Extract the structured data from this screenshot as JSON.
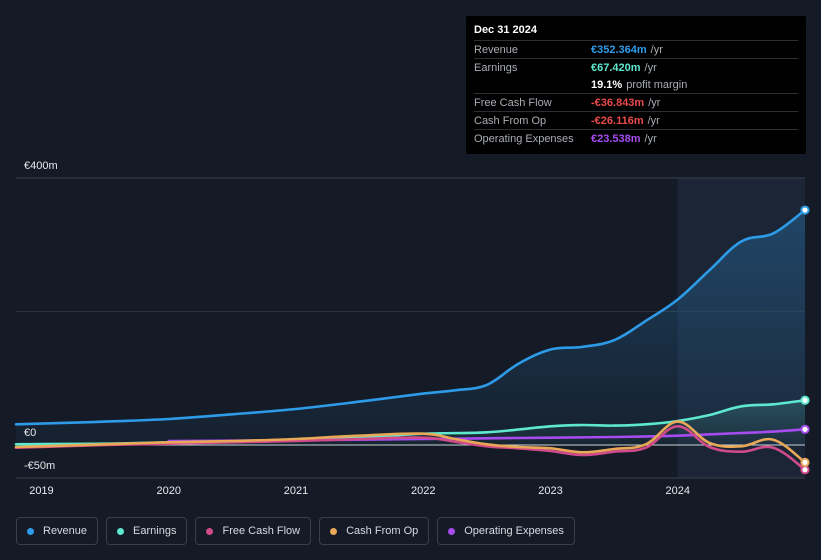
{
  "tooltip": {
    "date": "Dec 31 2024",
    "rows": [
      {
        "name": "Revenue",
        "value": "€352.364m",
        "unit": "/yr",
        "color": "#2d9be8"
      },
      {
        "name": "Earnings",
        "value": "€67.420m",
        "unit": "/yr",
        "color": "#5ee8cf"
      },
      {
        "name": "",
        "value": "19.1%",
        "unit": "profit margin",
        "color": "#ffffff"
      },
      {
        "name": "Free Cash Flow",
        "value": "-€36.843m",
        "unit": "/yr",
        "color": "#e84a4a"
      },
      {
        "name": "Cash From Op",
        "value": "-€26.116m",
        "unit": "/yr",
        "color": "#e84a4a"
      },
      {
        "name": "Operating Expenses",
        "value": "€23.538m",
        "unit": "/yr",
        "color": "#a64cf0"
      }
    ]
  },
  "axis": {
    "y_top_label": "€400m",
    "y_zero_label": "€0",
    "y_bottom_label": "-€50m"
  },
  "legend": [
    {
      "label": "Revenue",
      "color": "#2d9be8"
    },
    {
      "label": "Earnings",
      "color": "#5ee8cf"
    },
    {
      "label": "Free Cash Flow",
      "color": "#d14a8a"
    },
    {
      "label": "Cash From Op",
      "color": "#e8a857"
    },
    {
      "label": "Operating Expenses",
      "color": "#a64cf0"
    }
  ],
  "chart_data": {
    "type": "line",
    "x_ticks": [
      "2019",
      "2020",
      "2021",
      "2022",
      "2023",
      "2024"
    ],
    "ylim": [
      -50,
      400
    ],
    "x_range": [
      2018.8,
      2025.0
    ],
    "highlight_start": 2024.0,
    "series": [
      {
        "name": "Revenue",
        "color": "#2d9be8",
        "filled": true,
        "points": [
          [
            2018.8,
            31
          ],
          [
            2019.0,
            32
          ],
          [
            2019.5,
            35
          ],
          [
            2020.0,
            39
          ],
          [
            2020.5,
            46
          ],
          [
            2021.0,
            54
          ],
          [
            2021.5,
            65
          ],
          [
            2022.0,
            77
          ],
          [
            2022.25,
            82
          ],
          [
            2022.5,
            90
          ],
          [
            2022.75,
            122
          ],
          [
            2023.0,
            143
          ],
          [
            2023.25,
            147
          ],
          [
            2023.5,
            157
          ],
          [
            2023.75,
            186
          ],
          [
            2024.0,
            218
          ],
          [
            2024.25,
            262
          ],
          [
            2024.5,
            305
          ],
          [
            2024.75,
            317
          ],
          [
            2025.0,
            352
          ]
        ]
      },
      {
        "name": "Earnings",
        "color": "#5ee8cf",
        "filled": true,
        "points": [
          [
            2018.8,
            1
          ],
          [
            2019.0,
            1.5
          ],
          [
            2019.5,
            2
          ],
          [
            2020.0,
            4
          ],
          [
            2020.5,
            6
          ],
          [
            2021.0,
            8
          ],
          [
            2021.5,
            11
          ],
          [
            2022.0,
            17
          ],
          [
            2022.5,
            19
          ],
          [
            2023.0,
            28
          ],
          [
            2023.25,
            30
          ],
          [
            2023.5,
            29
          ],
          [
            2023.75,
            31
          ],
          [
            2024.0,
            36
          ],
          [
            2024.25,
            45
          ],
          [
            2024.5,
            58
          ],
          [
            2024.75,
            61
          ],
          [
            2025.0,
            67
          ]
        ]
      },
      {
        "name": "Free Cash Flow",
        "color": "#d14a8a",
        "filled": false,
        "points": [
          [
            2018.8,
            -4
          ],
          [
            2019.0,
            -3
          ],
          [
            2019.5,
            0
          ],
          [
            2020.0,
            2
          ],
          [
            2020.5,
            4
          ],
          [
            2021.0,
            6
          ],
          [
            2021.5,
            9
          ],
          [
            2022.0,
            11
          ],
          [
            2022.25,
            5
          ],
          [
            2022.5,
            -2
          ],
          [
            2022.75,
            -5
          ],
          [
            2023.0,
            -9
          ],
          [
            2023.25,
            -15
          ],
          [
            2023.5,
            -10
          ],
          [
            2023.75,
            -4
          ],
          [
            2024.0,
            28
          ],
          [
            2024.25,
            -3
          ],
          [
            2024.5,
            -10
          ],
          [
            2024.75,
            -4
          ],
          [
            2025.0,
            -37
          ]
        ]
      },
      {
        "name": "Cash From Op",
        "color": "#e8a857",
        "filled": false,
        "points": [
          [
            2018.8,
            -3
          ],
          [
            2019.0,
            -2
          ],
          [
            2019.5,
            1
          ],
          [
            2020.0,
            4
          ],
          [
            2020.5,
            6
          ],
          [
            2021.0,
            9
          ],
          [
            2021.5,
            14
          ],
          [
            2022.0,
            17
          ],
          [
            2022.25,
            9
          ],
          [
            2022.5,
            1
          ],
          [
            2022.75,
            -3
          ],
          [
            2023.0,
            -5
          ],
          [
            2023.25,
            -11
          ],
          [
            2023.5,
            -6
          ],
          [
            2023.75,
            1
          ],
          [
            2024.0,
            35
          ],
          [
            2024.25,
            3
          ],
          [
            2024.5,
            -2
          ],
          [
            2024.75,
            8
          ],
          [
            2025.0,
            -26
          ]
        ]
      },
      {
        "name": "Operating Expenses",
        "color": "#a64cf0",
        "filled": false,
        "points": [
          [
            2020.0,
            6
          ],
          [
            2020.5,
            6.5
          ],
          [
            2021.0,
            7
          ],
          [
            2021.5,
            8
          ],
          [
            2022.0,
            9
          ],
          [
            2022.5,
            10
          ],
          [
            2023.0,
            11
          ],
          [
            2023.5,
            12
          ],
          [
            2024.0,
            14
          ],
          [
            2024.5,
            18
          ],
          [
            2024.75,
            20
          ],
          [
            2025.0,
            23.5
          ]
        ]
      }
    ]
  }
}
